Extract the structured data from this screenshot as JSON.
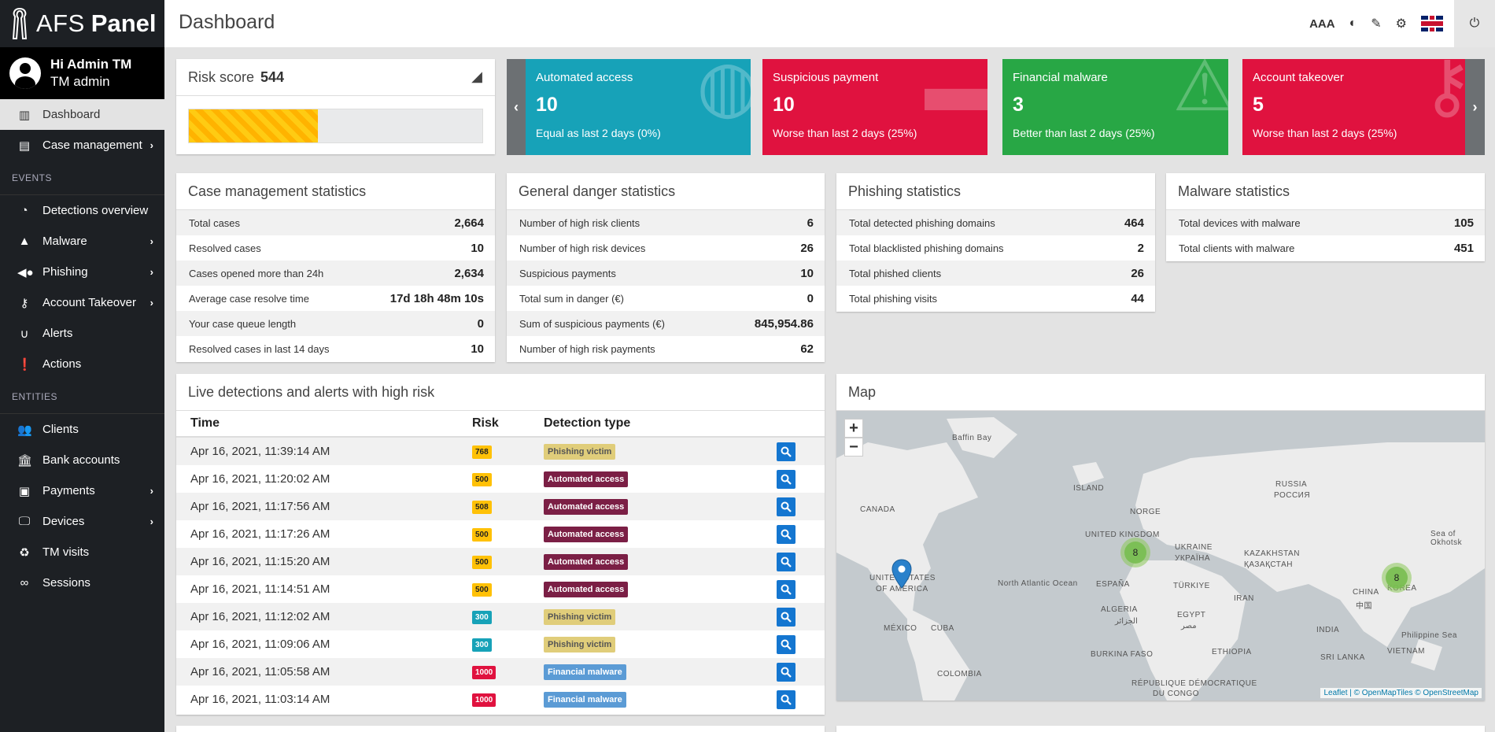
{
  "brand": {
    "part1": "AFS",
    "part2": "Panel"
  },
  "user": {
    "greeting": "Hi Admin TM",
    "role": "TM admin"
  },
  "sidebar": {
    "top": [
      {
        "label": "Dashboard",
        "icon": "bar-chart-icon",
        "active": true
      },
      {
        "label": "Case management",
        "icon": "inbox-icon",
        "sub": true
      }
    ],
    "events_label": "EVENTS",
    "events": [
      {
        "label": "Detections overview",
        "icon": "gauge-icon"
      },
      {
        "label": "Malware",
        "icon": "warning-icon",
        "sub": true
      },
      {
        "label": "Phishing",
        "icon": "fish-icon",
        "sub": true
      },
      {
        "label": "Account Takeover",
        "icon": "key-icon",
        "sub": true
      },
      {
        "label": "Alerts",
        "icon": "magnet-icon"
      },
      {
        "label": "Actions",
        "icon": "exclamation-icon"
      }
    ],
    "entities_label": "ENTITIES",
    "entities": [
      {
        "label": "Clients",
        "icon": "users-icon"
      },
      {
        "label": "Bank accounts",
        "icon": "bank-icon"
      },
      {
        "label": "Payments",
        "icon": "money-icon",
        "sub": true
      },
      {
        "label": "Devices",
        "icon": "desktop-icon",
        "sub": true
      },
      {
        "label": "TM visits",
        "icon": "recycle-icon"
      },
      {
        "label": "Sessions",
        "icon": "binoculars-icon"
      }
    ]
  },
  "header": {
    "title": "Dashboard",
    "font_label": "AAA"
  },
  "risk": {
    "label": "Risk score",
    "value": "544",
    "fill_percent": 44
  },
  "cards": [
    {
      "title": "Automated access",
      "value": "10",
      "sub": "Equal as last 2 days (0%)",
      "color": "#17a2b8",
      "icon": "globe-icon"
    },
    {
      "title": "Suspicious payment",
      "value": "10",
      "sub": "Worse than last 2 days (25%)",
      "color": "#e0123f",
      "icon": "credit-card-icon"
    },
    {
      "title": "Financial malware",
      "value": "3",
      "sub": "Better than last 2 days (25%)",
      "color": "#28a745",
      "icon": "warning-icon"
    },
    {
      "title": "Account takeover",
      "value": "5",
      "sub": "Worse than last 2 days (25%)",
      "color": "#e0123f",
      "icon": "key-icon"
    }
  ],
  "stats": [
    {
      "title": "Case management statistics",
      "rows": [
        [
          "Total cases",
          "2,664"
        ],
        [
          "Resolved cases",
          "10"
        ],
        [
          "Cases opened more than 24h",
          "2,634"
        ],
        [
          "Average case resolve time",
          "17d 18h 48m 10s"
        ],
        [
          "Your case queue length",
          "0"
        ],
        [
          "Resolved cases in last 14 days",
          "10"
        ]
      ]
    },
    {
      "title": "General danger statistics",
      "rows": [
        [
          "Number of high risk clients",
          "6"
        ],
        [
          "Number of high risk devices",
          "26"
        ],
        [
          "Suspicious payments",
          "10"
        ],
        [
          "Total sum in danger (€)",
          "0"
        ],
        [
          "Sum of suspicious payments (€)",
          "845,954.86"
        ],
        [
          "Number of high risk payments",
          "62"
        ]
      ]
    },
    {
      "title": "Phishing statistics",
      "rows": [
        [
          "Total detected phishing domains",
          "464"
        ],
        [
          "Total blacklisted phishing domains",
          "2"
        ],
        [
          "Total phished clients",
          "26"
        ],
        [
          "Total phishing visits",
          "44"
        ]
      ]
    },
    {
      "title": "Malware statistics",
      "rows": [
        [
          "Total devices with malware",
          "105"
        ],
        [
          "Total clients with malware",
          "451"
        ]
      ]
    }
  ],
  "live": {
    "title": "Live detections and alerts with high risk",
    "headers": [
      "Time",
      "Risk",
      "Detection type"
    ],
    "rows": [
      {
        "time": "Apr 16, 2021, 11:39:14 AM",
        "risk": "768",
        "type": "Phishing victim"
      },
      {
        "time": "Apr 16, 2021, 11:20:02 AM",
        "risk": "500",
        "type": "Automated access"
      },
      {
        "time": "Apr 16, 2021, 11:17:56 AM",
        "risk": "508",
        "type": "Automated access"
      },
      {
        "time": "Apr 16, 2021, 11:17:26 AM",
        "risk": "500",
        "type": "Automated access"
      },
      {
        "time": "Apr 16, 2021, 11:15:20 AM",
        "risk": "500",
        "type": "Automated access"
      },
      {
        "time": "Apr 16, 2021, 11:14:51 AM",
        "risk": "500",
        "type": "Automated access"
      },
      {
        "time": "Apr 16, 2021, 11:12:02 AM",
        "risk": "300",
        "type": "Phishing victim"
      },
      {
        "time": "Apr 16, 2021, 11:09:06 AM",
        "risk": "300",
        "type": "Phishing victim"
      },
      {
        "time": "Apr 16, 2021, 11:05:58 AM",
        "risk": "1000",
        "type": "Financial malware"
      },
      {
        "time": "Apr 16, 2021, 11:03:14 AM",
        "risk": "1000",
        "type": "Financial malware"
      }
    ]
  },
  "map": {
    "title": "Map",
    "zoom_in": "+",
    "zoom_out": "−",
    "labels": [
      "Baffin Bay",
      "ISLAND",
      "CANADA",
      "NORGE",
      "RUSSIA",
      "РОССИЯ",
      "UNITED KINGDOM",
      "UKRAINE",
      "УКРАЇНА",
      "KAZAKHSTAN",
      "ҚАЗАҚСТАН",
      "UNITED STATES",
      "OF AMERICA",
      "North Atlantic Ocean",
      "ESPAÑA",
      "TÜRKIYE",
      "ALGERIA",
      "الجزائر",
      "EGYPT",
      "مصر",
      "CHINA",
      "中国",
      "INDIA",
      "MÉXICO",
      "CUBA",
      "BURKINA FASO",
      "ETHIOPIA",
      "SRI LANKA",
      "VIETNAM",
      "COLOMBIA",
      "RÉPUBLIQUE DÉMOCRATIQUE",
      "DU CONGO",
      "Philippine Sea",
      "Sea of Okhotsk",
      "IRAN",
      "KOREA"
    ],
    "clusters": [
      "8",
      "8"
    ],
    "attribution": "Leaflet | © OpenMapTiles © OpenStreetMap"
  }
}
